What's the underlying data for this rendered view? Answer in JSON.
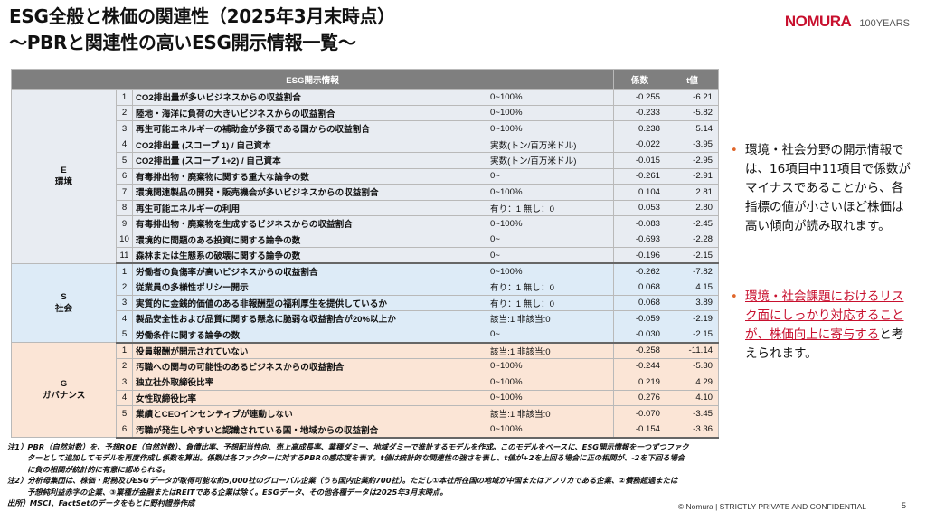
{
  "title": {
    "line1": "ESG全般と株価の関連性（2025年3月末時点）",
    "line2": "～PBRと関連性の高いESG開示情報一覧～"
  },
  "logo": {
    "brand": "NOMURA",
    "years": "100YEARS"
  },
  "table": {
    "headers": {
      "item": "ESG開示情報",
      "coef": "係数",
      "t": "t値"
    },
    "groups": [
      {
        "key": "e",
        "label_line1": "E",
        "label_line2": "環境",
        "rows": [
          {
            "no": "1",
            "item": "CO2排出量が多いビジネスからの収益割合",
            "unit": "0~100%",
            "coef": "-0.255",
            "t": "-6.21"
          },
          {
            "no": "2",
            "item": "陸地・海洋に負荷の大きいビジネスからの収益割合",
            "unit": "0~100%",
            "coef": "-0.233",
            "t": "-5.82"
          },
          {
            "no": "3",
            "item": "再生可能エネルギーの補助金が多額である国からの収益割合",
            "unit": "0~100%",
            "coef": "0.238",
            "t": "5.14"
          },
          {
            "no": "4",
            "item": "CO2排出量 (スコープ 1) / 自己資本",
            "unit": "実数(トン/百万米ドル)",
            "coef": "-0.022",
            "t": "-3.95"
          },
          {
            "no": "5",
            "item": "CO2排出量 (スコープ 1+2) / 自己資本",
            "unit": "実数(トン/百万米ドル)",
            "coef": "-0.015",
            "t": "-2.95"
          },
          {
            "no": "6",
            "item": "有毒排出物・廃棄物に関する重大な論争の数",
            "unit": "0~",
            "coef": "-0.261",
            "t": "-2.91"
          },
          {
            "no": "7",
            "item": "環境関連製品の開発・販売機会が多いビジネスからの収益割合",
            "unit": "0~100%",
            "coef": "0.104",
            "t": "2.81"
          },
          {
            "no": "8",
            "item": "再生可能エネルギーの利用",
            "unit": "有り：1 無し：0",
            "coef": "0.053",
            "t": "2.80"
          },
          {
            "no": "9",
            "item": "有毒排出物・廃棄物を生成するビジネスからの収益割合",
            "unit": "0~100%",
            "coef": "-0.083",
            "t": "-2.45"
          },
          {
            "no": "10",
            "item": "環境的に問題のある投資に関する論争の数",
            "unit": "0~",
            "coef": "-0.693",
            "t": "-2.28"
          },
          {
            "no": "11",
            "item": "森林または生態系の破壊に関する論争の数",
            "unit": "0~",
            "coef": "-0.196",
            "t": "-2.15"
          }
        ]
      },
      {
        "key": "s",
        "label_line1": "S",
        "label_line2": "社会",
        "rows": [
          {
            "no": "1",
            "item": "労働者の負傷率が高いビジネスからの収益割合",
            "unit": "0~100%",
            "coef": "-0.262",
            "t": "-7.82"
          },
          {
            "no": "2",
            "item": "従業員の多様性ポリシー開示",
            "unit": "有り：1 無し：0",
            "coef": "0.068",
            "t": "4.15"
          },
          {
            "no": "3",
            "item": "実質的に金銭的価値のある非報酬型の福利厚生を提供しているか",
            "unit": "有り：1 無し：0",
            "coef": "0.068",
            "t": "3.89"
          },
          {
            "no": "4",
            "item": "製品安全性および品質に関する懸念に脆弱な収益割合が20%以上か",
            "unit": "該当:1 非該当:0",
            "coef": "-0.059",
            "t": "-2.19"
          },
          {
            "no": "5",
            "item": "労働条件に関する論争の数",
            "unit": "0~",
            "coef": "-0.030",
            "t": "-2.15"
          }
        ]
      },
      {
        "key": "g",
        "label_line1": "G",
        "label_line2": "ガバナンス",
        "rows": [
          {
            "no": "1",
            "item": "役員報酬が開示されていない",
            "unit": "該当:1 非該当:0",
            "coef": "-0.258",
            "t": "-11.14"
          },
          {
            "no": "2",
            "item": "汚職への関与の可能性のあるビジネスからの収益割合",
            "unit": "0~100%",
            "coef": "-0.244",
            "t": "-5.30"
          },
          {
            "no": "3",
            "item": "独立社外取締役比率",
            "unit": "0~100%",
            "coef": "0.219",
            "t": "4.29"
          },
          {
            "no": "4",
            "item": "女性取締役比率",
            "unit": "0~100%",
            "coef": "0.276",
            "t": "4.10"
          },
          {
            "no": "5",
            "item": "業績とCEOインセンティブが連動しない",
            "unit": "該当:1 非該当:0",
            "coef": "-0.070",
            "t": "-3.45"
          },
          {
            "no": "6",
            "item": "汚職が発生しやすいと認識されている国・地域からの収益割合",
            "unit": "0~100%",
            "coef": "-0.154",
            "t": "-3.36"
          }
        ]
      }
    ]
  },
  "side": {
    "bullet1": "環境・社会分野の開示情報では、16項目中11項目で係数がマイナスであることから、各指標の値が小さいほど株価は高い傾向が読み取れます。",
    "bullet2_red": "環境・社会課題におけるリスク面にしっかり対応することが、株価向上に寄与する",
    "bullet2_rest": "と考えられます。"
  },
  "notes": {
    "note1_a": "注1）PBR（自然対数）を、予想ROE（自然対数）、負債比率、予想配当性向、売上高成長率、業種ダミー、地域ダミーで推計するモデルを作成。このモデルをベースに、ESG開示情報を一つずつファク",
    "note1_b": "ターとして追加してモデルを再度作成し係数を算出。係数は各ファクターに対するPBRの感応度を表す。t値は統計的な関連性の強さを表し、t値が+2を上回る場合に正の相関が、-2を下回る場合",
    "note1_c": "に負の相関が統計的に有意に認められる。",
    "note2_a": "注2）分析母集団は、株価・財務及びESGデータが取得可能な約5,000社のグローバル企業（うち国内企業約700社）。ただし①本社所在国の地域が中国またはアフリカである企業、②債務超過または",
    "note2_b": "予想純利益赤字の企業、③業種が金融またはREITである企業は除く。ESGデータ、その他各種データは2025年3月末時点。",
    "source": "出所）MSCI、FactSetのデータをもとに野村證券作成"
  },
  "footer": {
    "copyright": "© Nomura | STRICTLY PRIVATE AND CONFIDENTIAL",
    "page": "5"
  }
}
